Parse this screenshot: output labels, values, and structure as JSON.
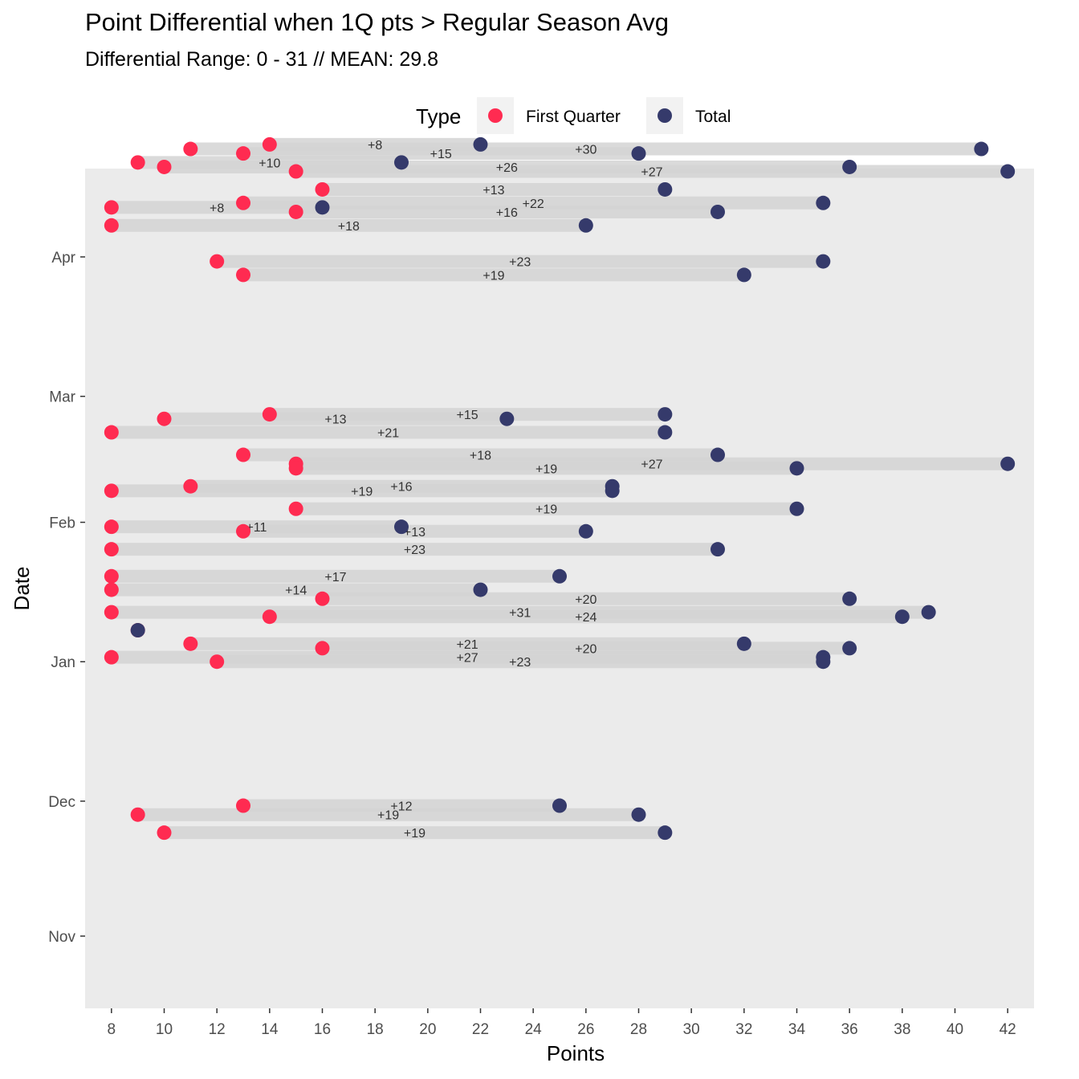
{
  "title": "Point Differential when 1Q pts > Regular Season Avg",
  "subtitle": "Differential Range:  0 - 31 // MEAN: 29.8",
  "colors": {
    "first_quarter": "#FF2B51",
    "total": "#353A6B",
    "panel": "#EBEBEB",
    "segment": "#D3D3D3"
  },
  "chart_data": {
    "type": "dumbbell",
    "xlabel": "Points",
    "ylabel": "Date",
    "xlim": [
      7,
      43
    ],
    "xticks": [
      8,
      10,
      12,
      14,
      16,
      18,
      20,
      22,
      24,
      26,
      28,
      30,
      32,
      34,
      36,
      38,
      40,
      42
    ],
    "yticks": [
      "Nov",
      "Dec",
      "Jan",
      "Feb",
      "Mar",
      "Apr"
    ],
    "legend": {
      "title": "Type",
      "position": "top",
      "entries": [
        "First Quarter",
        "Total"
      ]
    },
    "games": [
      {
        "date": "Apr 26",
        "first_quarter": 14,
        "total": 22,
        "label": "+8"
      },
      {
        "date": "Apr 25",
        "first_quarter": 11,
        "total": 41,
        "label": "+30"
      },
      {
        "date": "Apr 24",
        "first_quarter": 13,
        "total": 28,
        "label": "+15"
      },
      {
        "date": "Apr 22",
        "first_quarter": 9,
        "total": 19,
        "label": "+10"
      },
      {
        "date": "Apr 21",
        "first_quarter": 10,
        "total": 36,
        "label": "+26"
      },
      {
        "date": "Apr 20",
        "first_quarter": 15,
        "total": 42,
        "label": "+27"
      },
      {
        "date": "Apr 16",
        "first_quarter": 16,
        "total": 29,
        "label": "+13"
      },
      {
        "date": "Apr 13",
        "first_quarter": 13,
        "total": 35,
        "label": "+22"
      },
      {
        "date": "Apr 12",
        "first_quarter": 8,
        "total": 16,
        "label": "+8"
      },
      {
        "date": "Apr 11",
        "first_quarter": 15,
        "total": 31,
        "label": "+16"
      },
      {
        "date": "Apr 8",
        "first_quarter": 8,
        "total": 26,
        "label": "+18"
      },
      {
        "date": "Mar 31",
        "first_quarter": 12,
        "total": 35,
        "label": "+23"
      },
      {
        "date": "Mar 28",
        "first_quarter": 13,
        "total": 32,
        "label": "+19"
      },
      {
        "date": "Feb 25",
        "first_quarter": 14,
        "total": 29,
        "label": "+15"
      },
      {
        "date": "Feb 24",
        "first_quarter": 10,
        "total": 23,
        "label": "+13"
      },
      {
        "date": "Feb 21",
        "first_quarter": 8,
        "total": 29,
        "label": "+21"
      },
      {
        "date": "Feb 16",
        "first_quarter": 13,
        "total": 31,
        "label": "+18"
      },
      {
        "date": "Feb 14",
        "first_quarter": 15,
        "total": 42,
        "label": "+27"
      },
      {
        "date": "Feb 13",
        "first_quarter": 15,
        "total": 34,
        "label": "+19"
      },
      {
        "date": "Feb 9",
        "first_quarter": 11,
        "total": 27,
        "label": "+16"
      },
      {
        "date": "Feb 8",
        "first_quarter": 8,
        "total": 27,
        "label": "+19"
      },
      {
        "date": "Feb 4",
        "first_quarter": 15,
        "total": 34,
        "label": "+19"
      },
      {
        "date": "Jan 31",
        "first_quarter": 8,
        "total": 19,
        "label": "+11"
      },
      {
        "date": "Jan 30",
        "first_quarter": 13,
        "total": 26,
        "label": "+13"
      },
      {
        "date": "Jan 26",
        "first_quarter": 8,
        "total": 31,
        "label": "+23"
      },
      {
        "date": "Jan 20",
        "first_quarter": 8,
        "total": 25,
        "label": "+17"
      },
      {
        "date": "Jan 17",
        "first_quarter": 8,
        "total": 22,
        "label": "+14"
      },
      {
        "date": "Jan 15",
        "first_quarter": 16,
        "total": 36,
        "label": "+20"
      },
      {
        "date": "Jan 12",
        "first_quarter": 8,
        "total": 39,
        "label": "+31"
      },
      {
        "date": "Jan 11",
        "first_quarter": 14,
        "total": 38,
        "label": "+24"
      },
      {
        "date": "Jan 8",
        "first_quarter": 9,
        "total": 9,
        "label": ""
      },
      {
        "date": "Jan 5",
        "first_quarter": 11,
        "total": 32,
        "label": "+21"
      },
      {
        "date": "Jan 4",
        "first_quarter": 16,
        "total": 36,
        "label": "+20"
      },
      {
        "date": "Jan 2",
        "first_quarter": 8,
        "total": 35,
        "label": "+27"
      },
      {
        "date": "Jan 1",
        "first_quarter": 12,
        "total": 35,
        "label": "+23"
      },
      {
        "date": "Nov 30",
        "first_quarter": 13,
        "total": 25,
        "label": "+12"
      },
      {
        "date": "Nov 28",
        "first_quarter": 9,
        "total": 28,
        "label": "+19"
      },
      {
        "date": "Nov 24",
        "first_quarter": 10,
        "total": 29,
        "label": "+19"
      }
    ]
  }
}
